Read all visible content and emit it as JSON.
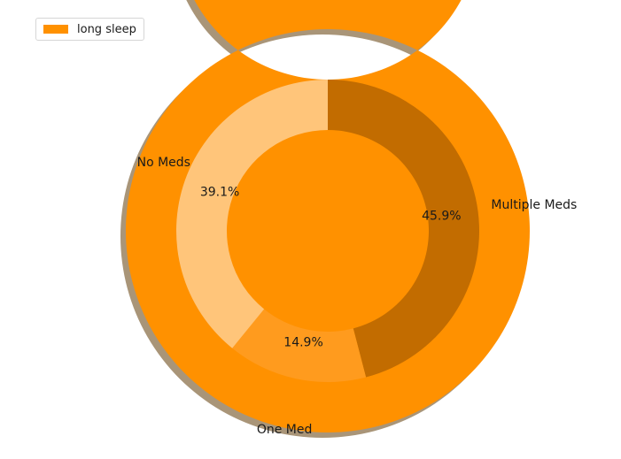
{
  "chart_data": {
    "type": "pie",
    "outer_ring": {
      "name": "long sleep",
      "values": [
        100
      ],
      "color": "#FF9100"
    },
    "inner_ring": {
      "categories": [
        "Multiple Meds",
        "One Med",
        "No Meds"
      ],
      "percent_labels": [
        "45.9%",
        "14.9%",
        "39.1%"
      ],
      "values": [
        45.9,
        14.9,
        39.1
      ],
      "colors": [
        "#C26C00",
        "#FF9B1E",
        "#FFC57A"
      ]
    },
    "legend": {
      "position": "upper-left",
      "entries": [
        {
          "label": "long sleep",
          "color": "#FF9100"
        }
      ]
    },
    "shadow": true,
    "shadow_color": "#A99578",
    "start_angle_deg": 90,
    "direction": "clockwise"
  }
}
